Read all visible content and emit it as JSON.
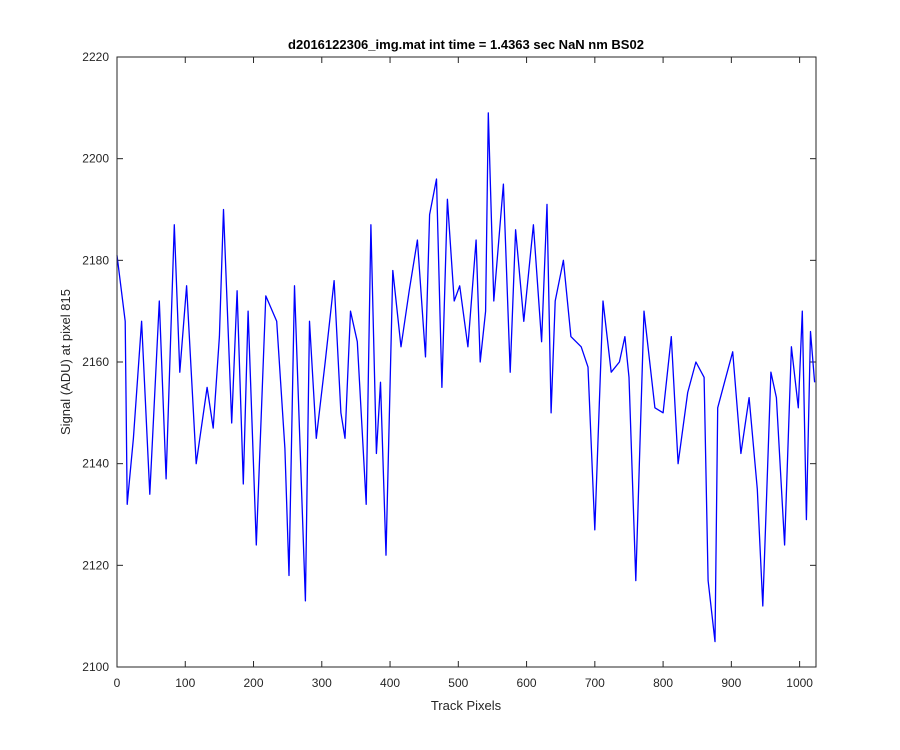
{
  "chart_data": {
    "type": "line",
    "title": "d2016122306_img.mat int time = 1.4363 sec  NaN nm BS02",
    "xlabel": "Track Pixels",
    "ylabel": "Signal (ADU) at pixel 815",
    "xlim": [
      0,
      1024
    ],
    "ylim": [
      2100,
      2220
    ],
    "xticks": [
      0,
      100,
      200,
      300,
      400,
      500,
      600,
      700,
      800,
      900,
      1000
    ],
    "yticks": [
      2100,
      2120,
      2140,
      2160,
      2180,
      2200,
      2220
    ],
    "grid": false,
    "line_color": "#0000ff",
    "series": [
      {
        "x": [
          0,
          12,
          15,
          24,
          36,
          48,
          62,
          72,
          84,
          92,
          102,
          116,
          132,
          141,
          150,
          156,
          168,
          176,
          185,
          192,
          204,
          218,
          234,
          246,
          252,
          260,
          276,
          282,
          292,
          305,
          318,
          328,
          334,
          342,
          352,
          365,
          372,
          380,
          386,
          394,
          404,
          416,
          428,
          440,
          452,
          458,
          468,
          476,
          484,
          494,
          502,
          514,
          526,
          532,
          540,
          544,
          552,
          566,
          576,
          584,
          596,
          610,
          622,
          630,
          636,
          642,
          654,
          665,
          680,
          690,
          700,
          712,
          724,
          736,
          744,
          750,
          760,
          772,
          788,
          800,
          812,
          822,
          836,
          848,
          860,
          866,
          876,
          880,
          890,
          902,
          914,
          926,
          938,
          946,
          958,
          966,
          978,
          988,
          998,
          1004,
          1010,
          1016,
          1022
        ],
        "values": [
          2181,
          2168,
          2132,
          2145,
          2168,
          2134,
          2172,
          2137,
          2187,
          2158,
          2175,
          2140,
          2155,
          2147,
          2165,
          2190,
          2148,
          2174,
          2136,
          2170,
          2124,
          2173,
          2168,
          2143,
          2118,
          2175,
          2113,
          2168,
          2145,
          2160,
          2176,
          2150,
          2145,
          2170,
          2164,
          2132,
          2187,
          2142,
          2156,
          2122,
          2178,
          2163,
          2174,
          2184,
          2161,
          2189,
          2196,
          2155,
          2192,
          2172,
          2175,
          2163,
          2184,
          2160,
          2170,
          2209,
          2172,
          2195,
          2158,
          2186,
          2168,
          2187,
          2164,
          2191,
          2150,
          2172,
          2180,
          2165,
          2163,
          2159,
          2127,
          2172,
          2158,
          2160,
          2165,
          2157,
          2117,
          2170,
          2151,
          2150,
          2165,
          2140,
          2154,
          2160,
          2157,
          2117,
          2105,
          2151,
          2156,
          2162,
          2142,
          2153,
          2135,
          2112,
          2158,
          2153,
          2124,
          2163,
          2151,
          2170,
          2129,
          2166,
          2156
        ]
      }
    ]
  }
}
